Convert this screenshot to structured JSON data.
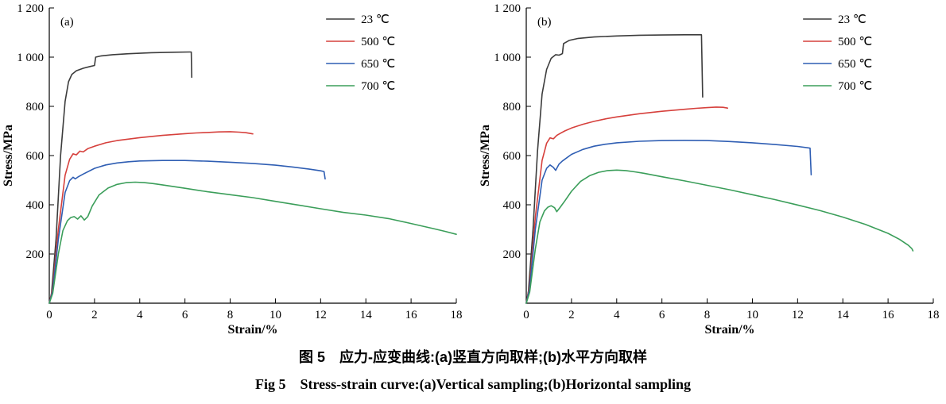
{
  "figure": {
    "caption_zh": "图 5　应力-应变曲线:(a)竖直方向取样;(b)水平方向取样",
    "caption_en": "Fig 5　Stress-strain curve:(a)Vertical sampling;(b)Horizontal sampling"
  },
  "chart_data": [
    {
      "type": "line",
      "panel_label": "(a)",
      "title": "",
      "xlabel": "Strain/%",
      "ylabel": "Stress/MPa",
      "xlim": [
        0,
        18
      ],
      "ylim": [
        0,
        1200
      ],
      "xticks": [
        0,
        2,
        4,
        6,
        8,
        10,
        12,
        14,
        16,
        18
      ],
      "yticks": [
        0,
        200,
        400,
        600,
        800,
        1000,
        1200
      ],
      "ytick_labels": [
        "",
        "200",
        "400",
        "600",
        "800",
        "1 000",
        "1 200"
      ],
      "grid": false,
      "legend_position": "top-right",
      "series": [
        {
          "name": "23 ℃",
          "color": "#3c3c3c",
          "points": [
            [
              0,
              0
            ],
            [
              0.1,
              40
            ],
            [
              0.3,
              260
            ],
            [
              0.5,
              600
            ],
            [
              0.7,
              820
            ],
            [
              0.85,
              900
            ],
            [
              1.0,
              930
            ],
            [
              1.2,
              945
            ],
            [
              1.5,
              955
            ],
            [
              1.8,
              962
            ],
            [
              2.0,
              966
            ],
            [
              2.05,
              1000
            ],
            [
              2.3,
              1005
            ],
            [
              2.8,
              1010
            ],
            [
              3.5,
              1014
            ],
            [
              4.5,
              1018
            ],
            [
              5.5,
              1020
            ],
            [
              6.2,
              1021
            ],
            [
              6.28,
              1021
            ],
            [
              6.3,
              918
            ]
          ]
        },
        {
          "name": "500 ℃",
          "color": "#d6403c",
          "points": [
            [
              0,
              0
            ],
            [
              0.15,
              60
            ],
            [
              0.4,
              300
            ],
            [
              0.7,
              520
            ],
            [
              0.9,
              585
            ],
            [
              1.05,
              607
            ],
            [
              1.2,
              603
            ],
            [
              1.35,
              618
            ],
            [
              1.5,
              615
            ],
            [
              1.7,
              628
            ],
            [
              2.0,
              638
            ],
            [
              2.5,
              652
            ],
            [
              3,
              661
            ],
            [
              4,
              673
            ],
            [
              5,
              682
            ],
            [
              6,
              689
            ],
            [
              6.5,
              692
            ],
            [
              7,
              694
            ],
            [
              7.5,
              696
            ],
            [
              8,
              697
            ],
            [
              8.4,
              695
            ],
            [
              8.7,
              693
            ],
            [
              9,
              688
            ]
          ]
        },
        {
          "name": "650 ℃",
          "color": "#2f5eb3",
          "points": [
            [
              0,
              0
            ],
            [
              0.15,
              50
            ],
            [
              0.4,
              260
            ],
            [
              0.7,
              450
            ],
            [
              0.9,
              498
            ],
            [
              1.05,
              512
            ],
            [
              1.15,
              505
            ],
            [
              1.3,
              515
            ],
            [
              1.5,
              525
            ],
            [
              2,
              548
            ],
            [
              2.5,
              562
            ],
            [
              3,
              570
            ],
            [
              3.5,
              575
            ],
            [
              4,
              578
            ],
            [
              5,
              580
            ],
            [
              6,
              580
            ],
            [
              7,
              577
            ],
            [
              8,
              573
            ],
            [
              9,
              568
            ],
            [
              10,
              561
            ],
            [
              10.8,
              553
            ],
            [
              11.5,
              545
            ],
            [
              12,
              538
            ],
            [
              12.15,
              535
            ],
            [
              12.2,
              505
            ]
          ]
        },
        {
          "name": "700 ℃",
          "color": "#3b9e5a",
          "points": [
            [
              0,
              0
            ],
            [
              0.15,
              40
            ],
            [
              0.4,
              200
            ],
            [
              0.6,
              295
            ],
            [
              0.8,
              335
            ],
            [
              0.95,
              348
            ],
            [
              1.1,
              352
            ],
            [
              1.25,
              342
            ],
            [
              1.4,
              355
            ],
            [
              1.55,
              338
            ],
            [
              1.7,
              352
            ],
            [
              1.9,
              395
            ],
            [
              2.2,
              440
            ],
            [
              2.6,
              468
            ],
            [
              3.0,
              483
            ],
            [
              3.4,
              490
            ],
            [
              3.8,
              492
            ],
            [
              4.2,
              490
            ],
            [
              4.6,
              486
            ],
            [
              5,
              481
            ],
            [
              5.5,
              474
            ],
            [
              6,
              467
            ],
            [
              7,
              453
            ],
            [
              8,
              441
            ],
            [
              9,
              429
            ],
            [
              10,
              414
            ],
            [
              11,
              399
            ],
            [
              12,
              384
            ],
            [
              13,
              369
            ],
            [
              14,
              358
            ],
            [
              15,
              344
            ],
            [
              16,
              324
            ],
            [
              17,
              303
            ],
            [
              17.5,
              292
            ],
            [
              18,
              280
            ]
          ]
        }
      ]
    },
    {
      "type": "line",
      "panel_label": "(b)",
      "title": "",
      "xlabel": "Strain/%",
      "ylabel": "Stress/MPa",
      "xlim": [
        0,
        18
      ],
      "ylim": [
        0,
        1200
      ],
      "xticks": [
        0,
        2,
        4,
        6,
        8,
        10,
        12,
        14,
        16,
        18
      ],
      "yticks": [
        0,
        200,
        400,
        600,
        800,
        1000,
        1200
      ],
      "ytick_labels": [
        "",
        "200",
        "400",
        "600",
        "800",
        "1 000",
        "1 200"
      ],
      "grid": false,
      "legend_position": "top-right",
      "series": [
        {
          "name": "23 ℃",
          "color": "#3c3c3c",
          "points": [
            [
              0,
              0
            ],
            [
              0.1,
              50
            ],
            [
              0.3,
              300
            ],
            [
              0.5,
              620
            ],
            [
              0.7,
              850
            ],
            [
              0.9,
              950
            ],
            [
              1.1,
              995
            ],
            [
              1.3,
              1010
            ],
            [
              1.45,
              1008
            ],
            [
              1.55,
              1012
            ],
            [
              1.6,
              1015
            ],
            [
              1.65,
              1055
            ],
            [
              1.9,
              1068
            ],
            [
              2.3,
              1076
            ],
            [
              3,
              1082
            ],
            [
              4,
              1086
            ],
            [
              5,
              1089
            ],
            [
              6,
              1090
            ],
            [
              7,
              1091
            ],
            [
              7.7,
              1091
            ],
            [
              7.75,
              1091
            ],
            [
              7.8,
              838
            ]
          ]
        },
        {
          "name": "500 ℃",
          "color": "#d6403c",
          "points": [
            [
              0,
              0
            ],
            [
              0.15,
              70
            ],
            [
              0.4,
              350
            ],
            [
              0.7,
              580
            ],
            [
              0.9,
              650
            ],
            [
              1.05,
              672
            ],
            [
              1.2,
              668
            ],
            [
              1.35,
              682
            ],
            [
              1.5,
              690
            ],
            [
              1.7,
              700
            ],
            [
              2,
              712
            ],
            [
              2.5,
              727
            ],
            [
              3,
              739
            ],
            [
              3.5,
              749
            ],
            [
              4,
              757
            ],
            [
              5,
              770
            ],
            [
              6,
              780
            ],
            [
              7,
              788
            ],
            [
              7.5,
              792
            ],
            [
              8,
              795
            ],
            [
              8.4,
              797
            ],
            [
              8.7,
              796
            ],
            [
              8.9,
              793
            ]
          ]
        },
        {
          "name": "650 ℃",
          "color": "#2f5eb3",
          "points": [
            [
              0,
              0
            ],
            [
              0.15,
              60
            ],
            [
              0.4,
              300
            ],
            [
              0.7,
              500
            ],
            [
              0.9,
              548
            ],
            [
              1.05,
              562
            ],
            [
              1.2,
              552
            ],
            [
              1.3,
              540
            ],
            [
              1.45,
              565
            ],
            [
              1.6,
              578
            ],
            [
              2,
              605
            ],
            [
              2.5,
              625
            ],
            [
              3,
              638
            ],
            [
              3.5,
              646
            ],
            [
              4,
              652
            ],
            [
              5,
              658
            ],
            [
              6,
              661
            ],
            [
              7,
              662
            ],
            [
              8,
              661
            ],
            [
              9,
              657
            ],
            [
              10,
              652
            ],
            [
              11,
              645
            ],
            [
              12,
              637
            ],
            [
              12.5,
              631
            ],
            [
              12.55,
              630
            ],
            [
              12.6,
              522
            ]
          ]
        },
        {
          "name": "700 ℃",
          "color": "#3b9e5a",
          "points": [
            [
              0,
              0
            ],
            [
              0.15,
              45
            ],
            [
              0.4,
              220
            ],
            [
              0.6,
              330
            ],
            [
              0.8,
              375
            ],
            [
              0.95,
              390
            ],
            [
              1.1,
              396
            ],
            [
              1.25,
              388
            ],
            [
              1.35,
              372
            ],
            [
              1.5,
              390
            ],
            [
              1.7,
              415
            ],
            [
              2,
              455
            ],
            [
              2.4,
              495
            ],
            [
              2.8,
              518
            ],
            [
              3.2,
              532
            ],
            [
              3.6,
              539
            ],
            [
              4.0,
              541
            ],
            [
              4.4,
              539
            ],
            [
              4.8,
              534
            ],
            [
              5.2,
              528
            ],
            [
              6,
              514
            ],
            [
              7,
              497
            ],
            [
              8,
              479
            ],
            [
              9,
              461
            ],
            [
              10,
              441
            ],
            [
              11,
              421
            ],
            [
              12,
              399
            ],
            [
              13,
              376
            ],
            [
              14,
              350
            ],
            [
              15,
              320
            ],
            [
              16,
              284
            ],
            [
              16.5,
              260
            ],
            [
              16.9,
              235
            ],
            [
              17.05,
              222
            ],
            [
              17.1,
              213
            ]
          ]
        }
      ]
    }
  ]
}
